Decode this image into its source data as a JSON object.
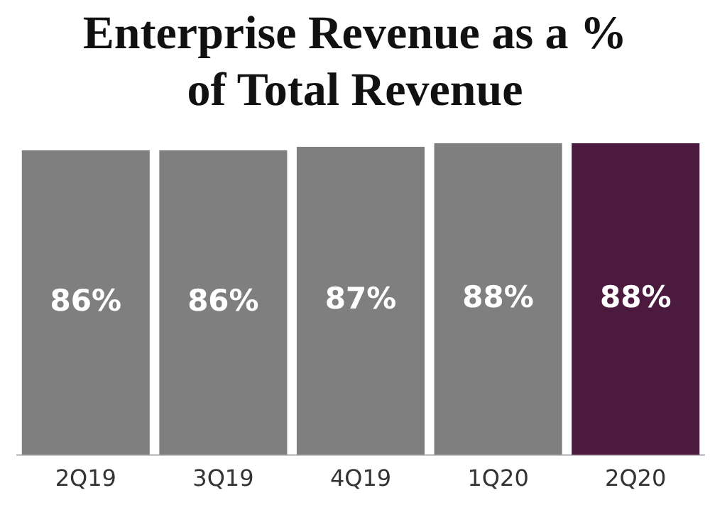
{
  "chart_data": {
    "type": "bar",
    "title": "Enterprise Revenue as a % of Total Revenue",
    "categories": [
      "2Q19",
      "3Q19",
      "4Q19",
      "1Q20",
      "2Q20"
    ],
    "values": [
      86,
      86,
      87,
      88,
      88
    ],
    "colors": [
      "#7f7f7f",
      "#7f7f7f",
      "#7f7f7f",
      "#7f7f7f",
      "#4b1a3e"
    ],
    "value_labels": [
      "86%",
      "86%",
      "87%",
      "88%",
      "88%"
    ],
    "tick_labels": "x",
    "grid": false,
    "legend": false
  }
}
